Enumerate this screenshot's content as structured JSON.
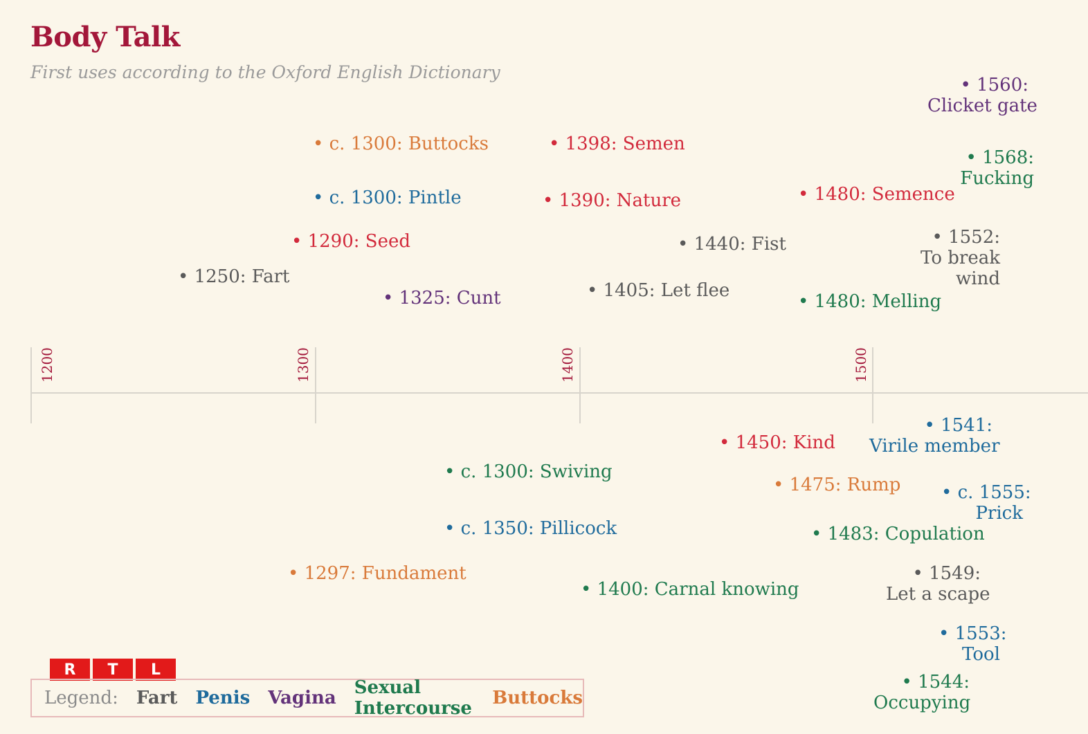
{
  "title": "Body Talk",
  "subtitle": "First uses according to the Oxford English Dictionary",
  "axis_ticks": [
    "1200",
    "1300",
    "1400",
    "1500"
  ],
  "legend": {
    "label": "Legend:",
    "items": [
      {
        "name": "Fart",
        "color": "#5a5a5a"
      },
      {
        "name": "Penis",
        "color": "#1f6b9c"
      },
      {
        "name": "Vagina",
        "color": "#63337a"
      },
      {
        "name": "Sexual Intercourse",
        "color": "#1f7a4e"
      },
      {
        "name": "Buttocks",
        "color": "#d97a3a"
      }
    ]
  },
  "logo_text": [
    "R",
    "T",
    "L"
  ],
  "events": [
    {
      "id": "clicket",
      "lines": [
        "• 1560:",
        "Clicket gate"
      ],
      "color_class": "c-vagina"
    },
    {
      "id": "buttocks",
      "lines": [
        "• c. 1300: Buttocks"
      ],
      "color_class": "c-butt"
    },
    {
      "id": "semen",
      "lines": [
        "• 1398: Semen"
      ],
      "color_class": "c-seed"
    },
    {
      "id": "fucking",
      "lines": [
        "• 1568:",
        "Fucking"
      ],
      "color_class": "c-sex"
    },
    {
      "id": "pintle",
      "lines": [
        "• c. 1300: Pintle"
      ],
      "color_class": "c-penis"
    },
    {
      "id": "nature",
      "lines": [
        "• 1390: Nature"
      ],
      "color_class": "c-seed"
    },
    {
      "id": "semence",
      "lines": [
        "• 1480: Semence"
      ],
      "color_class": "c-seed"
    },
    {
      "id": "seed",
      "lines": [
        "• 1290: Seed"
      ],
      "color_class": "c-seed"
    },
    {
      "id": "fist",
      "lines": [
        "• 1440: Fist"
      ],
      "color_class": "c-fart"
    },
    {
      "id": "breakwind",
      "lines": [
        "• 1552:",
        "To break",
        "wind"
      ],
      "color_class": "c-fart"
    },
    {
      "id": "fart",
      "lines": [
        "• 1250: Fart"
      ],
      "color_class": "c-fart"
    },
    {
      "id": "cunt",
      "lines": [
        "• 1325: Cunt"
      ],
      "color_class": "c-vagina"
    },
    {
      "id": "letflee",
      "lines": [
        "• 1405: Let flee"
      ],
      "color_class": "c-fart"
    },
    {
      "id": "melling",
      "lines": [
        "• 1480: Melling"
      ],
      "color_class": "c-sex"
    },
    {
      "id": "virile",
      "lines": [
        "• 1541:",
        "Virile member"
      ],
      "color_class": "c-penis"
    },
    {
      "id": "kind",
      "lines": [
        "• 1450: Kind"
      ],
      "color_class": "c-seed"
    },
    {
      "id": "swiving",
      "lines": [
        "• c. 1300: Swiving"
      ],
      "color_class": "c-sex"
    },
    {
      "id": "rump",
      "lines": [
        "• 1475: Rump"
      ],
      "color_class": "c-butt"
    },
    {
      "id": "prick",
      "lines": [
        "• c. 1555:",
        "Prick"
      ],
      "color_class": "c-penis"
    },
    {
      "id": "pillicock",
      "lines": [
        "• c. 1350: Pillicock"
      ],
      "color_class": "c-penis"
    },
    {
      "id": "copulation",
      "lines": [
        "• 1483: Copulation"
      ],
      "color_class": "c-sex"
    },
    {
      "id": "fundament",
      "lines": [
        "• 1297: Fundament"
      ],
      "color_class": "c-butt"
    },
    {
      "id": "scape",
      "lines": [
        "• 1549:",
        "Let a scape"
      ],
      "color_class": "c-fart"
    },
    {
      "id": "carnal",
      "lines": [
        "• 1400: Carnal knowing"
      ],
      "color_class": "c-sex"
    },
    {
      "id": "tool",
      "lines": [
        "• 1553:",
        "Tool"
      ],
      "color_class": "c-penis"
    },
    {
      "id": "occupying",
      "lines": [
        "• 1544:",
        "Occupying"
      ],
      "color_class": "c-sex"
    }
  ]
}
